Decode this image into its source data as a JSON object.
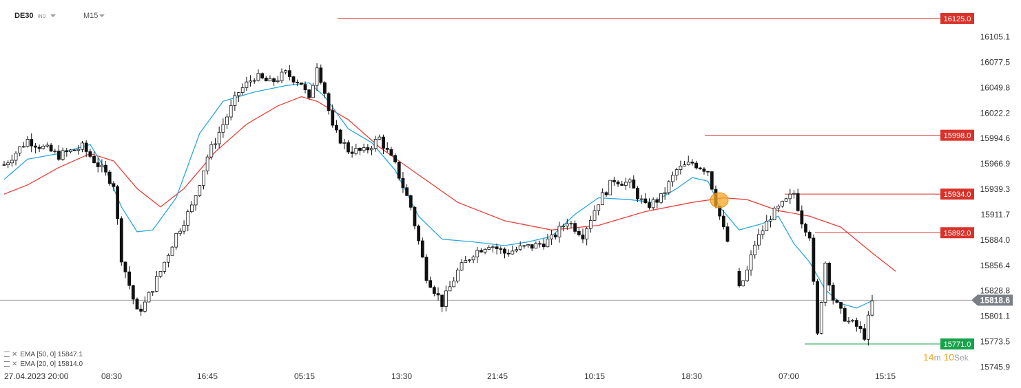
{
  "header": {
    "symbol": "DE30",
    "symbol_sub": "IND",
    "timeframe": "M15"
  },
  "legend": [
    {
      "label": "EMA  [50, 0]",
      "value": "15847.1"
    },
    {
      "label": "EMA  [20, 0]",
      "value": "15814.0"
    }
  ],
  "timer": {
    "minutes": "14",
    "min_unit": "m",
    "seconds": "10",
    "sec_unit": "Sek"
  },
  "colors": {
    "ema50": "#e8403a",
    "ema20": "#29a7dd",
    "candle": "#111111",
    "red_label": "#d9322b",
    "green_label": "#16a34a",
    "price_tag": "#7a7f85"
  },
  "icons": {
    "legend_toggle": "eye-icon",
    "legend_remove": "close-icon"
  },
  "chart_data": {
    "type": "candlestick",
    "y_ticks": [
      "16105.1",
      "16077.5",
      "16049.8",
      "16022.2",
      "15994.6",
      "15966.9",
      "15939.3",
      "15911.7",
      "15884.0",
      "15856.4",
      "15828.8",
      "15801.1",
      "15773.5",
      "15745.9"
    ],
    "x_ticks": [
      "27.04.2023  20:00",
      "08:30",
      "16:45",
      "05:15",
      "13:30",
      "21:45",
      "10:15",
      "18:30",
      "07:00",
      "15:15"
    ],
    "ylim": [
      15745.9,
      16132
    ],
    "current_price": "15818.6",
    "levels": [
      {
        "value": 16125.0,
        "label": "16125.0",
        "kind": "resistance",
        "x_start": "05:15+"
      },
      {
        "value": 15998.0,
        "label": "15998.0",
        "kind": "resistance",
        "x_start": "18:30+"
      },
      {
        "value": 15934.0,
        "label": "15934.0",
        "kind": "resistance",
        "x_start": "07:00"
      },
      {
        "value": 15892.0,
        "label": "15892.0",
        "kind": "resistance",
        "x_start": "07:00+"
      },
      {
        "value": 15771.0,
        "label": "15771.0",
        "kind": "support",
        "x_start": "07:00"
      }
    ],
    "series": [
      {
        "name": "EMA  [50, 0]",
        "last": 15847.1
      },
      {
        "name": "EMA  [20, 0]",
        "last": 15814.0
      }
    ],
    "ema50_path": [
      [
        0,
        15934
      ],
      [
        6,
        15944
      ],
      [
        14,
        15963
      ],
      [
        22,
        15978
      ],
      [
        28,
        15970
      ],
      [
        34,
        15940
      ],
      [
        40,
        15920
      ],
      [
        46,
        15940
      ],
      [
        54,
        15980
      ],
      [
        62,
        16010
      ],
      [
        70,
        16030
      ],
      [
        76,
        16040
      ],
      [
        80,
        16035
      ],
      [
        88,
        16015
      ],
      [
        96,
        15985
      ],
      [
        106,
        15955
      ],
      [
        116,
        15925
      ],
      [
        128,
        15905
      ],
      [
        140,
        15895
      ],
      [
        152,
        15900
      ],
      [
        164,
        15915
      ],
      [
        176,
        15925
      ],
      [
        184,
        15930
      ],
      [
        190,
        15928
      ],
      [
        198,
        15916
      ],
      [
        206,
        15910
      ],
      [
        214,
        15898
      ],
      [
        222,
        15870
      ],
      [
        228,
        15850
      ]
    ],
    "ema20_path": [
      [
        0,
        15950
      ],
      [
        6,
        15972
      ],
      [
        14,
        15978
      ],
      [
        22,
        15988
      ],
      [
        26,
        15960
      ],
      [
        30,
        15920
      ],
      [
        34,
        15893
      ],
      [
        38,
        15895
      ],
      [
        44,
        15930
      ],
      [
        50,
        16000
      ],
      [
        56,
        16035
      ],
      [
        64,
        16045
      ],
      [
        72,
        16052
      ],
      [
        78,
        16055
      ],
      [
        82,
        16040
      ],
      [
        88,
        16005
      ],
      [
        94,
        15990
      ],
      [
        100,
        15960
      ],
      [
        106,
        15910
      ],
      [
        112,
        15885
      ],
      [
        120,
        15882
      ],
      [
        128,
        15878
      ],
      [
        134,
        15882
      ],
      [
        140,
        15888
      ],
      [
        146,
        15912
      ],
      [
        152,
        15930
      ],
      [
        160,
        15928
      ],
      [
        166,
        15925
      ],
      [
        172,
        15940
      ],
      [
        176,
        15952
      ],
      [
        180,
        15948
      ],
      [
        183,
        15920
      ],
      [
        188,
        15895
      ],
      [
        194,
        15902
      ],
      [
        198,
        15910
      ],
      [
        202,
        15880
      ],
      [
        206,
        15860
      ],
      [
        210,
        15830
      ],
      [
        214,
        15815
      ],
      [
        218,
        15810
      ],
      [
        222,
        15818
      ]
    ],
    "candle_path": [
      [
        0,
        15966
      ],
      [
        6,
        15993
      ],
      [
        14,
        15976
      ],
      [
        20,
        15985
      ],
      [
        24,
        15966
      ],
      [
        28,
        15945
      ],
      [
        30,
        15865
      ],
      [
        34,
        15805
      ],
      [
        36,
        15815
      ],
      [
        40,
        15850
      ],
      [
        44,
        15890
      ],
      [
        48,
        15920
      ],
      [
        52,
        15975
      ],
      [
        56,
        16010
      ],
      [
        60,
        16045
      ],
      [
        64,
        16062
      ],
      [
        68,
        16055
      ],
      [
        72,
        16065
      ],
      [
        76,
        16055
      ],
      [
        78,
        16035
      ],
      [
        80,
        16075
      ],
      [
        82,
        16045
      ],
      [
        84,
        16005
      ],
      [
        88,
        15982
      ],
      [
        92,
        15980
      ],
      [
        96,
        15995
      ],
      [
        100,
        15965
      ],
      [
        104,
        15920
      ],
      [
        108,
        15845
      ],
      [
        112,
        15815
      ],
      [
        116,
        15850
      ],
      [
        120,
        15870
      ],
      [
        124,
        15880
      ],
      [
        128,
        15870
      ],
      [
        132,
        15875
      ],
      [
        136,
        15878
      ],
      [
        140,
        15885
      ],
      [
        144,
        15905
      ],
      [
        148,
        15890
      ],
      [
        152,
        15926
      ],
      [
        156,
        15950
      ],
      [
        160,
        15945
      ],
      [
        164,
        15920
      ],
      [
        168,
        15930
      ],
      [
        172,
        15960
      ],
      [
        176,
        15968
      ],
      [
        180,
        15960
      ],
      [
        182,
        15925
      ],
      [
        184,
        15895
      ],
      [
        186,
        15870
      ],
      [
        188,
        15830
      ],
      [
        190,
        15850
      ],
      [
        192,
        15880
      ],
      [
        196,
        15910
      ],
      [
        200,
        15926
      ],
      [
        202,
        15935
      ],
      [
        204,
        15905
      ],
      [
        206,
        15890
      ],
      [
        208,
        15780
      ],
      [
        210,
        15860
      ],
      [
        212,
        15820
      ],
      [
        214,
        15805
      ],
      [
        216,
        15795
      ],
      [
        218,
        15790
      ],
      [
        220,
        15780
      ],
      [
        222,
        15816
      ]
    ],
    "grid": false
  }
}
